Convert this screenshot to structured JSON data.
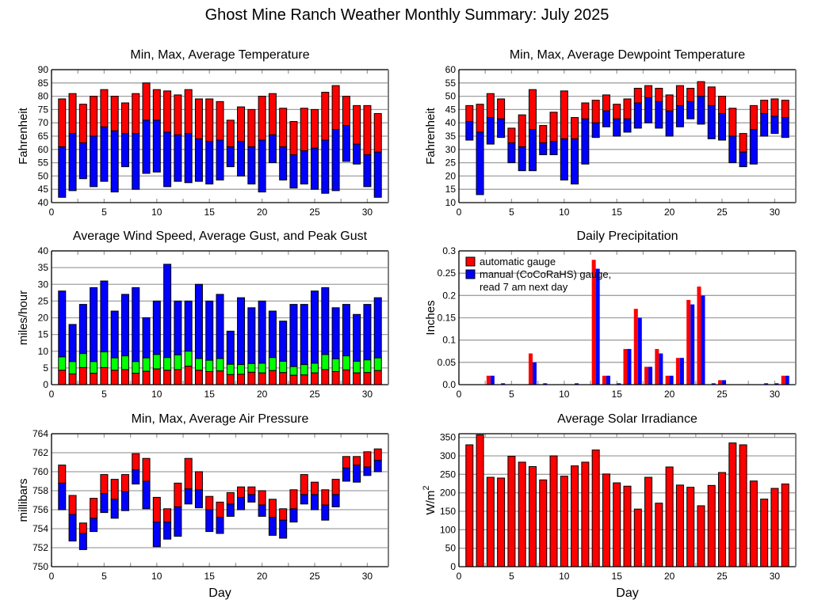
{
  "title": "Ghost Mine Ranch Weather Monthly Summary: July 2025",
  "colors": {
    "red": "#ff0000",
    "blue": "#0000ff",
    "green": "#00ff00",
    "grid": "#a0a0a0"
  },
  "chart_data": [
    {
      "id": "temperature",
      "type": "bar",
      "style": "floating-min-avg-max",
      "title": "Min, Max, Average Temperature",
      "xlabel": "",
      "ylabel": "Fahrenheit",
      "xlim": [
        0,
        32
      ],
      "ylim": [
        40,
        90
      ],
      "xticks": [
        0,
        5,
        10,
        15,
        20,
        25,
        30
      ],
      "yticks": [
        40,
        45,
        50,
        55,
        60,
        65,
        70,
        75,
        80,
        85,
        90
      ],
      "x": [
        1,
        2,
        3,
        4,
        5,
        6,
        7,
        8,
        9,
        10,
        11,
        12,
        13,
        14,
        15,
        16,
        17,
        18,
        19,
        20,
        21,
        22,
        23,
        24,
        25,
        26,
        27,
        28,
        29,
        30,
        31
      ],
      "series": [
        {
          "name": "min",
          "values": [
            42,
            44.5,
            49,
            46,
            48,
            44,
            53.5,
            45,
            51,
            51.5,
            46,
            48,
            47.5,
            48,
            47,
            48.5,
            53.5,
            50,
            47,
            44,
            55,
            48.5,
            45.5,
            47,
            45,
            43.5,
            44.5,
            55.5,
            54.5,
            46,
            42
          ]
        },
        {
          "name": "avg",
          "values": [
            61,
            66,
            62.5,
            65,
            68.5,
            67,
            66,
            66,
            71,
            71,
            66.5,
            65.5,
            66,
            64,
            63,
            63.5,
            61,
            63,
            61,
            63.5,
            65.5,
            61,
            58,
            59.5,
            60.5,
            63.5,
            67.5,
            69,
            62,
            58,
            59
          ]
        },
        {
          "name": "max",
          "values": [
            79,
            81,
            77,
            80,
            82.5,
            80,
            77.5,
            81,
            85,
            82.5,
            82,
            80.5,
            82.5,
            79,
            79,
            78,
            71,
            76,
            75,
            80,
            81,
            75.5,
            70.5,
            75.5,
            75,
            81.5,
            84,
            80,
            76.5,
            76.5,
            73.5
          ]
        }
      ]
    },
    {
      "id": "dewpoint",
      "type": "bar",
      "style": "floating-min-avg-max",
      "title": "Min, Max, Average Dewpoint Temperature",
      "xlabel": "",
      "ylabel": "Fahrenheit",
      "xlim": [
        0,
        32
      ],
      "ylim": [
        10,
        60
      ],
      "xticks": [
        0,
        5,
        10,
        15,
        20,
        25,
        30
      ],
      "yticks": [
        10,
        15,
        20,
        25,
        30,
        35,
        40,
        45,
        50,
        55,
        60
      ],
      "x": [
        1,
        2,
        3,
        4,
        5,
        6,
        7,
        8,
        9,
        10,
        11,
        12,
        13,
        14,
        15,
        16,
        17,
        18,
        19,
        20,
        21,
        22,
        23,
        24,
        25,
        26,
        27,
        28,
        29,
        30,
        31
      ],
      "series": [
        {
          "name": "min",
          "values": [
            33.5,
            13,
            32,
            34.5,
            25,
            22,
            22,
            28,
            28,
            18.5,
            17,
            24.5,
            34.5,
            38.5,
            35,
            36.5,
            38,
            40,
            38,
            35,
            38.5,
            41.5,
            39.5,
            34,
            33.5,
            25,
            23.5,
            24.5,
            35,
            36,
            34.5
          ]
        },
        {
          "name": "avg",
          "values": [
            40.5,
            36.5,
            42,
            41.5,
            32.5,
            31,
            37.5,
            32.5,
            33,
            34,
            34,
            41.5,
            40,
            44.5,
            41.5,
            41.5,
            47.5,
            49.5,
            48,
            44.5,
            46.5,
            48,
            50,
            46.5,
            43.5,
            35,
            29,
            37.5,
            43.5,
            42.5,
            42
          ]
        },
        {
          "name": "max",
          "values": [
            46.5,
            47,
            51,
            49,
            38,
            43,
            52.5,
            39,
            44,
            52,
            42,
            47.5,
            48.5,
            50.5,
            47,
            49,
            53,
            54,
            53,
            50.5,
            54,
            53,
            55.5,
            53.5,
            50,
            45.5,
            36,
            46.5,
            48.5,
            49,
            48.5
          ]
        }
      ]
    },
    {
      "id": "wind",
      "type": "bar",
      "style": "stacked-avg-gust-peak",
      "title": "Average Wind Speed, Average Gust, and Peak Gust",
      "xlabel": "",
      "ylabel": "miles/hour",
      "xlim": [
        0,
        32
      ],
      "ylim": [
        0,
        40
      ],
      "xticks": [
        0,
        5,
        10,
        15,
        20,
        25,
        30
      ],
      "yticks": [
        0,
        5,
        10,
        15,
        20,
        25,
        30,
        35,
        40
      ],
      "x": [
        1,
        2,
        3,
        4,
        5,
        6,
        7,
        8,
        9,
        10,
        11,
        12,
        13,
        14,
        15,
        16,
        17,
        18,
        19,
        20,
        21,
        22,
        23,
        24,
        25,
        26,
        27,
        28,
        29,
        30,
        31
      ],
      "series": [
        {
          "name": "average wind speed",
          "values": [
            4.3,
            3.2,
            5.1,
            3.4,
            5.1,
            4.3,
            4.5,
            3.4,
            4.0,
            4.7,
            4.3,
            4.5,
            5.5,
            4.3,
            3.9,
            4.1,
            3.0,
            3.1,
            3.7,
            3.5,
            4.2,
            3.6,
            2.8,
            2.9,
            3.5,
            4.5,
            3.9,
            4.4,
            3.5,
            3.6,
            4.2
          ]
        },
        {
          "name": "average gust",
          "values": [
            8.3,
            6.9,
            9.3,
            6.9,
            9.8,
            8.0,
            8.6,
            6.9,
            8.0,
            9.0,
            8.1,
            8.9,
            10.0,
            7.8,
            7.3,
            7.8,
            6.1,
            6.0,
            6.3,
            6.4,
            8.1,
            7.0,
            5.4,
            6.0,
            6.4,
            9.0,
            7.7,
            8.6,
            7.0,
            7.4,
            8.0
          ]
        },
        {
          "name": "peak gust",
          "values": [
            28,
            18,
            24,
            29,
            31,
            22,
            27,
            29,
            20,
            25,
            36,
            25,
            25,
            30,
            25,
            27,
            16,
            26,
            23,
            25,
            22,
            19,
            24,
            24,
            28,
            29,
            23,
            24,
            21,
            24,
            26
          ]
        }
      ]
    },
    {
      "id": "precipitation",
      "type": "bar",
      "style": "grouped",
      "title": "Daily Precipitation",
      "xlabel": "",
      "ylabel": "Inches",
      "xlim": [
        0,
        32
      ],
      "ylim": [
        0,
        0.3
      ],
      "xticks": [
        0,
        5,
        10,
        15,
        20,
        25,
        30
      ],
      "yticks": [
        0,
        0.05,
        0.1,
        0.15,
        0.2,
        0.25,
        0.3
      ],
      "ytick_labels": [
        "0.0",
        "0.05",
        "0.1",
        "0.15",
        "0.2",
        "0.25",
        "0.3"
      ],
      "legend": [
        "automatic gauge",
        "manual (CoCoRaHS) gauge,",
        "read 7 am next day"
      ],
      "legend_position": "top-left",
      "x": [
        1,
        2,
        3,
        4,
        5,
        6,
        7,
        8,
        9,
        10,
        11,
        12,
        13,
        14,
        15,
        16,
        17,
        18,
        19,
        20,
        21,
        22,
        23,
        24,
        25,
        26,
        27,
        28,
        29,
        30,
        31
      ],
      "series": [
        {
          "name": "automatic gauge",
          "values": [
            0,
            0,
            0.02,
            0,
            0,
            0,
            0.07,
            0,
            0,
            0,
            0,
            0,
            0.28,
            0.02,
            0,
            0.08,
            0.17,
            0.04,
            0.08,
            0.02,
            0.06,
            0.19,
            0.22,
            0,
            0.01,
            0,
            0,
            0,
            0,
            0,
            0.02
          ]
        },
        {
          "name": "manual (CoCoRaHS) gauge, read 7 am next day",
          "values": [
            0,
            0,
            0.02,
            0.003,
            0,
            0,
            0.05,
            0.003,
            0,
            0,
            0.003,
            0,
            0.26,
            0.02,
            0.003,
            0.08,
            0.15,
            0.04,
            0.07,
            0.02,
            0.06,
            0.18,
            0.2,
            0.003,
            0.01,
            0,
            0,
            0,
            0.003,
            0.003,
            0.02
          ]
        }
      ]
    },
    {
      "id": "pressure",
      "type": "bar",
      "style": "floating-min-avg-max",
      "title": "Min, Max, Average Air Pressure",
      "xlabel": "Day",
      "ylabel": "millibars",
      "xlim": [
        0,
        32
      ],
      "ylim": [
        750,
        764
      ],
      "xticks": [
        0,
        5,
        10,
        15,
        20,
        25,
        30
      ],
      "yticks": [
        750,
        752,
        754,
        756,
        758,
        760,
        762,
        764
      ],
      "x": [
        1,
        2,
        3,
        4,
        5,
        6,
        7,
        8,
        9,
        10,
        11,
        12,
        13,
        14,
        15,
        16,
        17,
        18,
        19,
        20,
        21,
        22,
        23,
        24,
        25,
        26,
        27,
        28,
        29,
        30,
        31
      ],
      "series": [
        {
          "name": "min",
          "values": [
            756,
            752.7,
            751.8,
            753.7,
            755.7,
            755.1,
            755.9,
            758.7,
            756.1,
            752.1,
            752.9,
            753.2,
            756.6,
            756.2,
            753.7,
            753.5,
            755.3,
            756,
            756.8,
            755.3,
            753.3,
            753,
            754.7,
            756.6,
            756,
            754.9,
            756.3,
            759,
            758.9,
            759.6,
            760
          ]
        },
        {
          "name": "avg",
          "values": [
            758.8,
            755.5,
            753.5,
            755.1,
            757.7,
            757.1,
            757.9,
            760.2,
            759,
            754.7,
            754.7,
            756.3,
            758.2,
            758.1,
            756,
            755.2,
            756.6,
            757.3,
            757.6,
            756.5,
            755.2,
            754.9,
            756.1,
            757.6,
            757.6,
            756.5,
            757.6,
            760.4,
            760.7,
            760.5,
            761.2
          ]
        },
        {
          "name": "max",
          "values": [
            760.7,
            757.5,
            754.6,
            757.2,
            759.7,
            759.2,
            759.7,
            761.9,
            761.4,
            757.3,
            756.1,
            758.8,
            761.4,
            760,
            757.4,
            756.8,
            757.8,
            758.4,
            758.4,
            758,
            757.1,
            756.1,
            758.1,
            759.7,
            758.9,
            758.1,
            759.2,
            761.6,
            761.6,
            762.1,
            762.4
          ]
        }
      ]
    },
    {
      "id": "solar",
      "type": "bar",
      "style": "single",
      "title": "Average Solar Irradiance",
      "xlabel": "Day",
      "ylabel": "W/m",
      "ylabel_superscript": "2",
      "xlim": [
        0,
        32
      ],
      "ylim": [
        0,
        360
      ],
      "xticks": [
        0,
        5,
        10,
        15,
        20,
        25,
        30
      ],
      "yticks": [
        0,
        50,
        100,
        150,
        200,
        250,
        300,
        350
      ],
      "x": [
        1,
        2,
        3,
        4,
        5,
        6,
        7,
        8,
        9,
        10,
        11,
        12,
        13,
        14,
        15,
        16,
        17,
        18,
        19,
        20,
        21,
        22,
        23,
        24,
        25,
        26,
        27,
        28,
        29,
        30,
        31
      ],
      "series": [
        {
          "name": "average solar irradiance",
          "values": [
            330,
            357,
            242,
            240,
            299,
            283,
            271,
            235,
            300,
            245,
            273,
            283,
            316,
            251,
            227,
            218,
            156,
            242,
            172,
            270,
            221,
            215,
            165,
            220,
            255,
            335,
            330,
            232,
            183,
            212,
            224
          ]
        }
      ]
    }
  ]
}
